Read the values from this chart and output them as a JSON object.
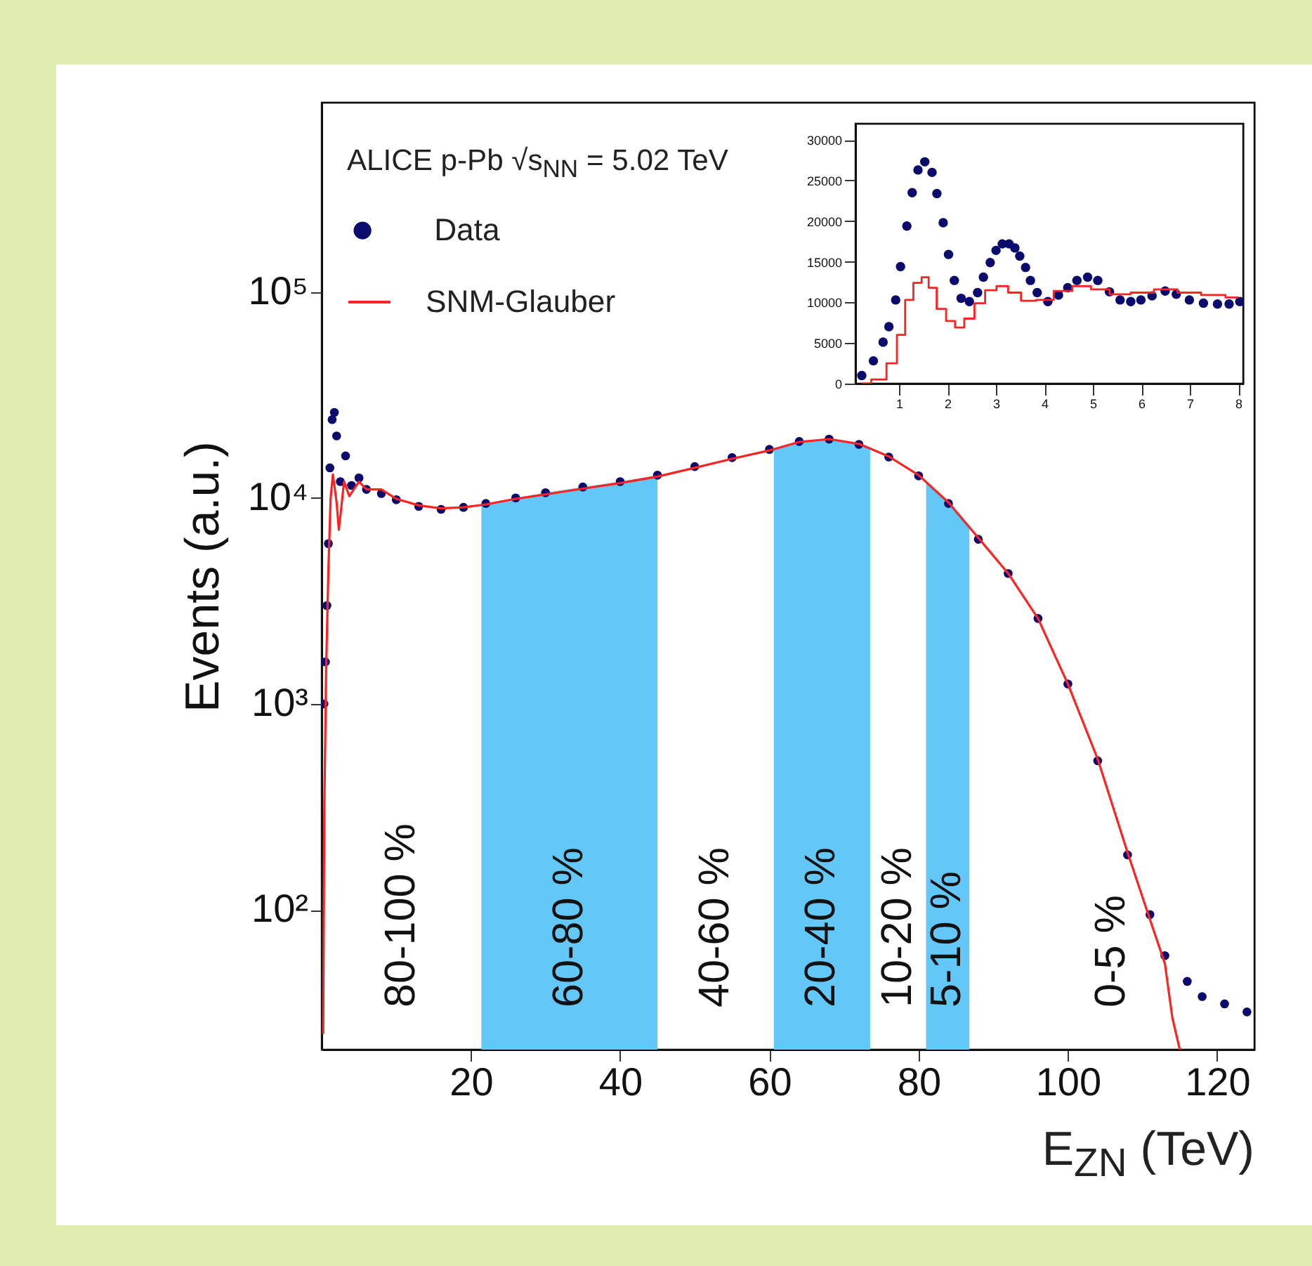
{
  "chart_data": [
    {
      "type": "scatter",
      "xlabel": "E$_{ZN}$ (TeV)",
      "ylabel": "Events (a.u.)",
      "annotations": [
        "ALICE p-Pb √s$_{NN}$ = 5.02 TeV",
        "80-100 %",
        "40-60 %",
        "10-20 %",
        "0-5 %"
      ],
      "log": "y",
      "xlim": [
        0,
        125
      ],
      "xticks": [
        20,
        40,
        60,
        80,
        100,
        120
      ],
      "ylim": [
        21,
        830000
      ],
      "yticks": [
        {
          "value": 100,
          "label": "10²"
        },
        {
          "value": 1000,
          "label": "10³"
        },
        {
          "value": 10000,
          "label": "10⁴"
        },
        {
          "value": 100000,
          "label": "10⁵"
        }
      ],
      "legend": "top left",
      "bands": [
        {
          "axis": "x",
          "from": 21.4,
          "to": 45,
          "label": "60-80 %",
          "color": "#63c8f8"
        },
        {
          "axis": "x",
          "from": 60.6,
          "to": 73.5,
          "label": "20-40 %",
          "color": "#63c8f8"
        },
        {
          "axis": "x",
          "from": 81,
          "to": 86.8,
          "label": "5-10 %",
          "color": "#63c8f8"
        }
      ],
      "series": [
        {
          "name": "Data",
          "marker": "circle",
          "color": "#0b0b6e",
          "x": [
            0.3,
            0.5,
            0.7,
            0.9,
            1.1,
            1.4,
            1.7,
            2.0,
            2.5,
            3.2,
            4,
            5,
            6,
            8,
            10,
            13,
            16,
            19,
            22,
            26,
            30,
            35,
            40,
            45,
            50,
            55,
            60,
            64,
            68,
            72,
            76,
            80,
            84,
            88,
            92,
            96,
            100,
            104,
            108,
            111,
            113,
            116,
            118,
            121,
            124
          ],
          "values": [
            1000,
            1600,
            3000,
            6000,
            14000,
            24000,
            26000,
            20000,
            12000,
            16000,
            11500,
            12500,
            11000,
            10500,
            9800,
            9100,
            8800,
            9000,
            9400,
            10000,
            10600,
            11300,
            12000,
            12900,
            14200,
            15700,
            17200,
            18800,
            19300,
            18200,
            15800,
            12800,
            9400,
            6300,
            4300,
            2600,
            1250,
            530,
            185,
            95,
            60,
            45,
            38,
            35,
            32
          ]
        },
        {
          "name": "SNM-Glauber",
          "type": "line",
          "color": "#ff2222",
          "x": [
            0.2,
            0.35,
            0.6,
            0.9,
            1.2,
            1.5,
            2.0,
            2.3,
            3.0,
            3.7,
            5,
            6,
            8,
            10,
            13,
            16,
            19,
            22,
            26,
            30,
            35,
            40,
            45,
            50,
            55,
            60,
            64,
            68,
            72,
            76,
            80,
            84,
            88,
            92,
            96,
            100,
            104,
            108,
            111,
            113,
            114,
            115
          ],
          "values": [
            25,
            300,
            1500,
            4500,
            10000,
            13000,
            9500,
            7000,
            12000,
            10200,
            12000,
            11000,
            11000,
            9900,
            9200,
            8900,
            9000,
            9300,
            9900,
            10400,
            11100,
            11800,
            12700,
            14000,
            15500,
            17000,
            18700,
            19300,
            18300,
            15900,
            12900,
            9500,
            6400,
            4300,
            2600,
            1250,
            540,
            190,
            90,
            55,
            30,
            21
          ]
        }
      ]
    },
    {
      "type": "scatter",
      "xlim": [
        0.1,
        8.1
      ],
      "xticks": [
        1,
        2,
        3,
        4,
        5,
        6,
        7,
        8
      ],
      "ylim": [
        0,
        32000
      ],
      "yticks": [
        0,
        5000,
        10000,
        15000,
        20000,
        25000,
        30000
      ],
      "series": [
        {
          "marker": "circle",
          "color": "#0b0b6e",
          "x": [
            0.23,
            0.47,
            0.67,
            0.79,
            0.93,
            1.03,
            1.16,
            1.27,
            1.39,
            1.53,
            1.68,
            1.78,
            1.91,
            2.02,
            2.14,
            2.28,
            2.45,
            2.62,
            2.74,
            2.88,
            3.0,
            3.13,
            3.27,
            3.39,
            3.49,
            3.61,
            3.71,
            3.85,
            4.07,
            4.29,
            4.48,
            4.67,
            4.89,
            5.1,
            5.34,
            5.56,
            5.78,
            5.99,
            6.22,
            6.49,
            6.72,
            6.99,
            7.28,
            7.57,
            7.81,
            8.03
          ],
          "values": [
            1000,
            2800,
            5100,
            7000,
            10300,
            14400,
            19400,
            23500,
            26300,
            27300,
            26000,
            23400,
            19800,
            15900,
            12700,
            10500,
            10100,
            11200,
            13100,
            14900,
            16400,
            17200,
            17200,
            16700,
            15700,
            14300,
            12700,
            11200,
            10100,
            10900,
            11800,
            12700,
            13100,
            12700,
            11300,
            10300,
            10100,
            10300,
            10800,
            11400,
            11000,
            10300,
            9900,
            9800,
            9800,
            10100
          ]
        },
        {
          "type": "step",
          "color": "#ff2222",
          "x": [
            0.23,
            0.62,
            0.86,
            1.05,
            1.2,
            1.39,
            1.54,
            1.68,
            1.87,
            2.07,
            2.24,
            2.45,
            2.66,
            2.89,
            3.13,
            3.37,
            3.66,
            4.0,
            4.38,
            4.77,
            5.15,
            5.54,
            6.02,
            6.5,
            6.99,
            7.47,
            8.0
          ],
          "values": [
            0,
            500,
            2500,
            6000,
            10300,
            12400,
            13100,
            11800,
            9200,
            7700,
            6900,
            8000,
            9900,
            11500,
            12000,
            11200,
            10200,
            10300,
            11400,
            12000,
            11600,
            11000,
            11200,
            11600,
            11200,
            10900,
            10600
          ]
        }
      ]
    }
  ]
}
